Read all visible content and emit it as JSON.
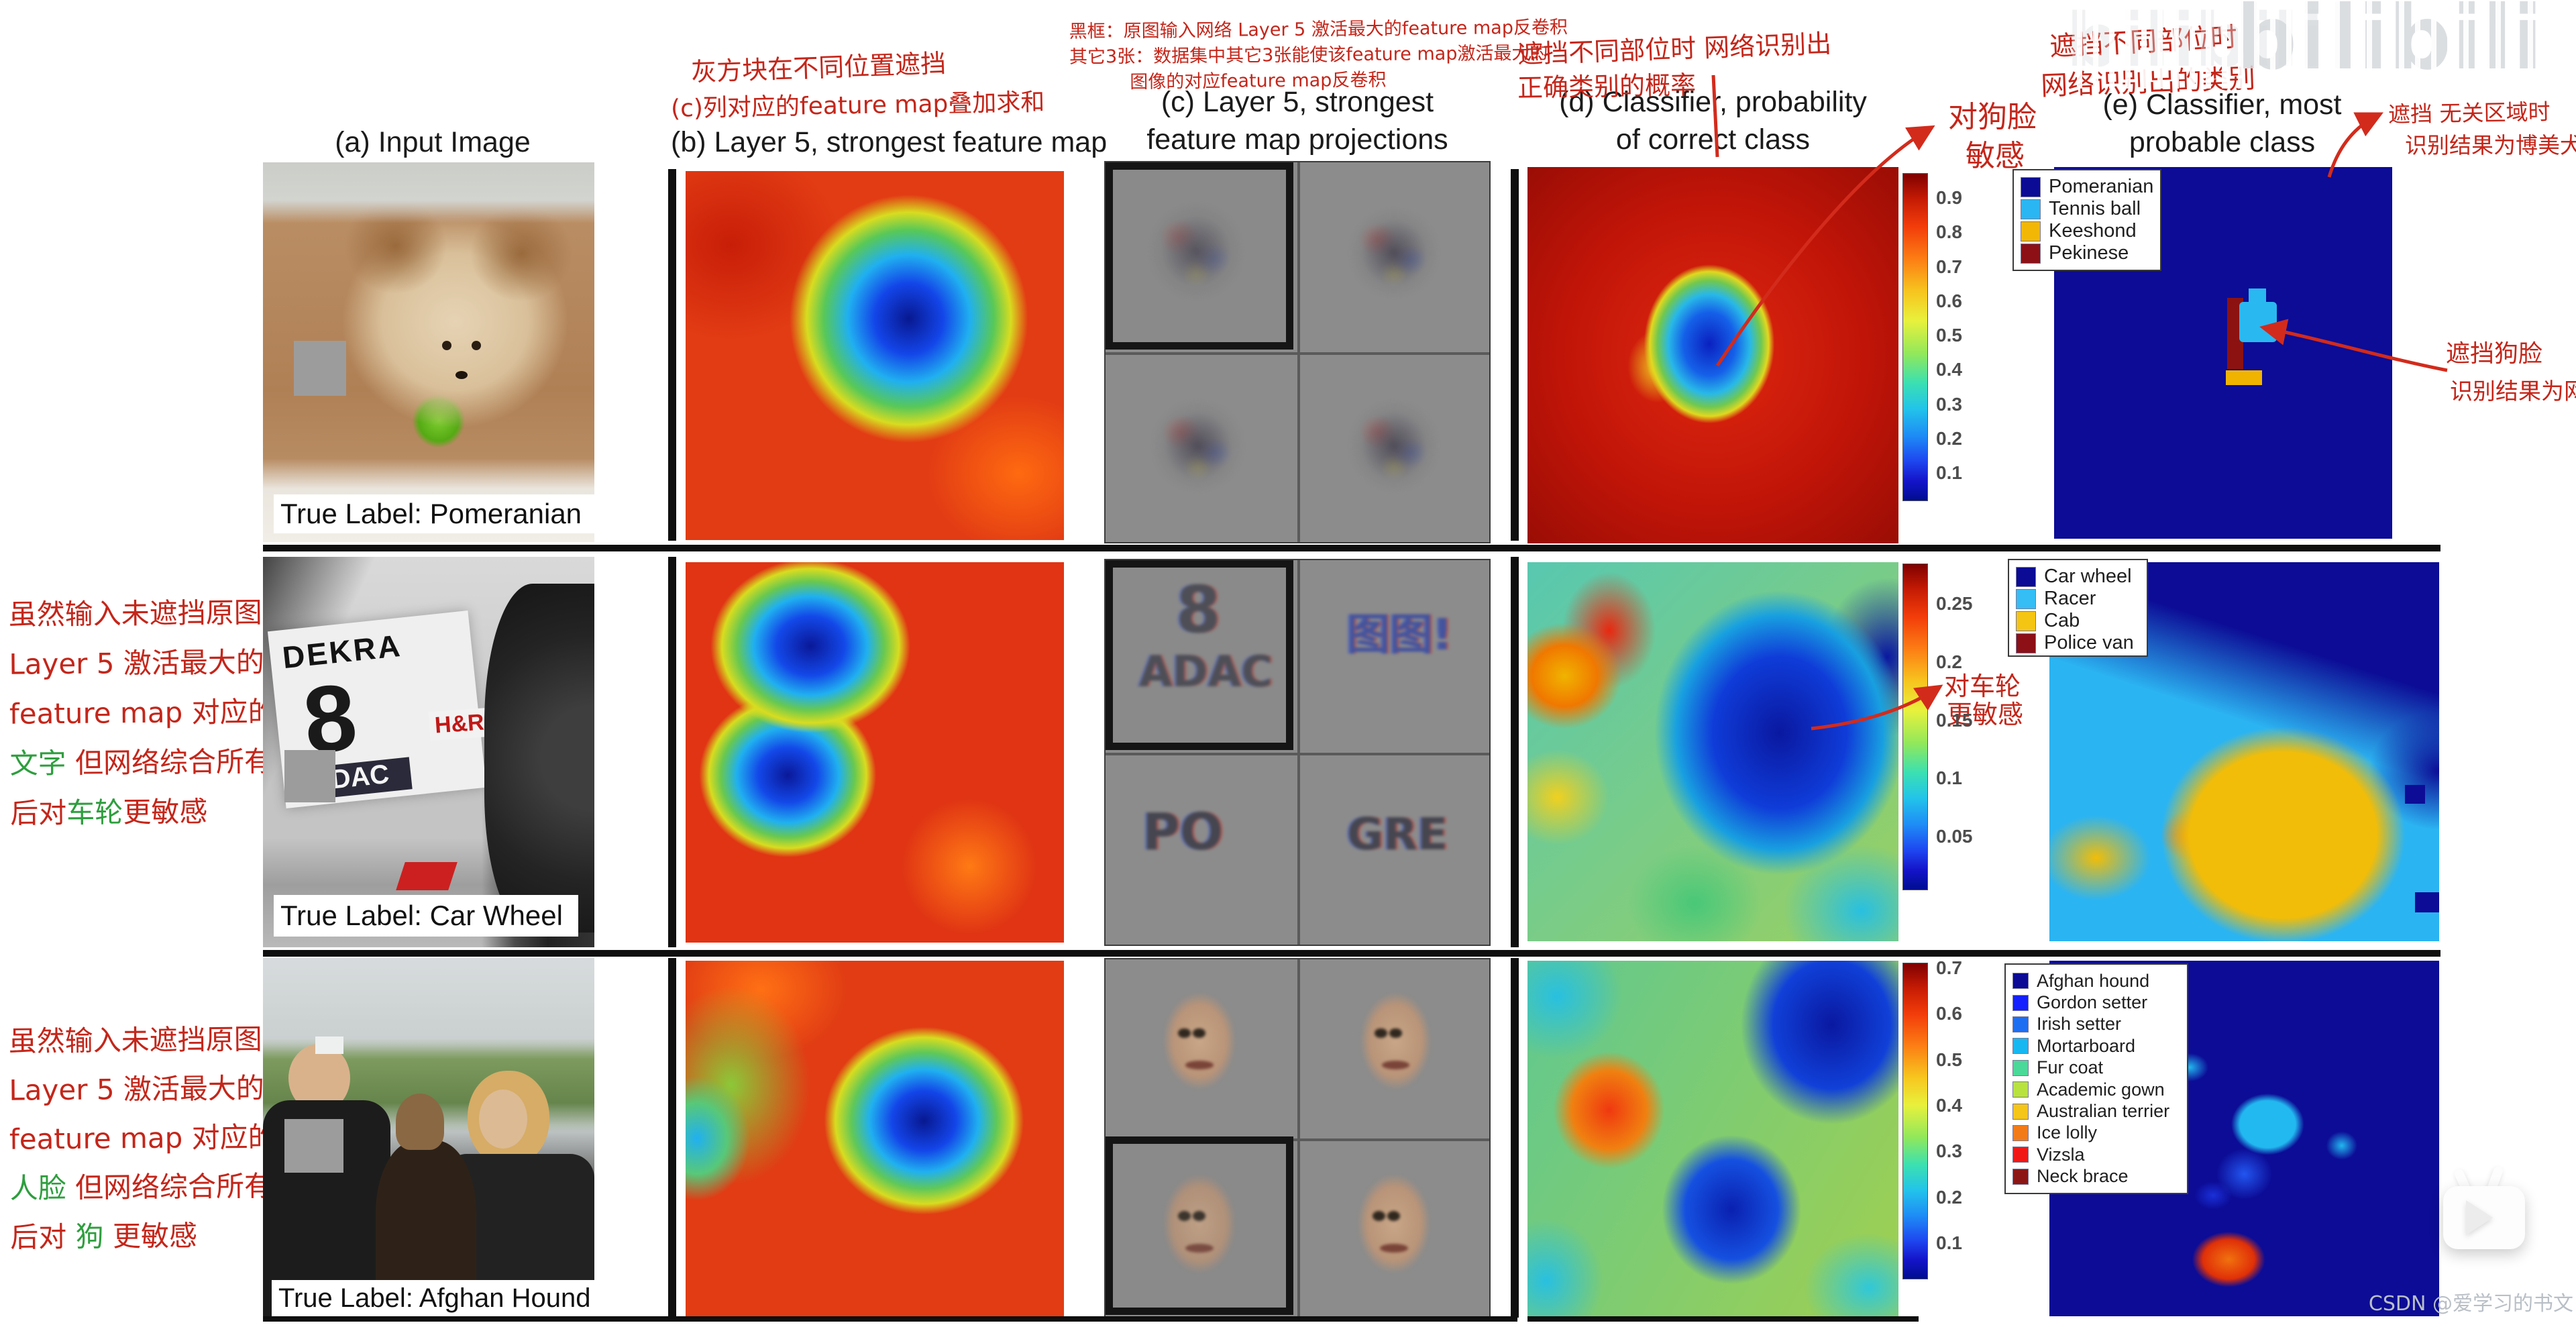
{
  "columns": {
    "a": {
      "header": "(a) Input Image"
    },
    "b": {
      "header": "(b) Layer 5, strongest feature map"
    },
    "c": {
      "header_line1": "(c) Layer 5, strongest",
      "header_line2": "feature map projections"
    },
    "d": {
      "header_line1": "(d) Classifier, probability",
      "header_line2": "of correct class"
    },
    "e": {
      "header_line1": "(e) Classifier, most",
      "header_line2": "probable class"
    }
  },
  "annotations": {
    "above_b_line1": "灰方块在不同位置遮挡",
    "above_b_line2": "(c)列对应的feature map叠加求和",
    "above_c_line1": "黑框：原图输入网络 Layer 5 激活最大的feature map反卷积",
    "above_c_line2": "其它3张：数据集中其它3张能使该feature map激活最大的",
    "above_c_line3": "图像的对应feature map反卷积",
    "above_d_line1": "遮挡不同部位时 网络识别出",
    "above_d_line2": "正确类别的概率",
    "above_e_line1": "遮挡不同部位时",
    "above_e_line2": "网络识别出的类别",
    "dog_face_line1": "对狗脸",
    "dog_face_line2": "敏感",
    "irrelevant_line1": "遮挡 无关区域时",
    "irrelevant_line2": "识别结果为博美犬",
    "occlude_face_line1": "遮挡狗脸",
    "occlude_face_line2": "识别结果为网球",
    "wheel_line1": "对车轮",
    "wheel_line2": "更敏感",
    "row2_left": [
      [
        {
          "t": "虽然输入未遮挡原图",
          "c": "r"
        }
      ],
      [
        {
          "t": "Layer 5 激活最大的",
          "c": "r"
        }
      ],
      [
        {
          "t": "feature map 对应的特征是",
          "c": "r"
        }
      ],
      [
        {
          "t": "文字",
          "c": "g"
        },
        {
          "t": "  但网络综合所有特征",
          "c": "r"
        }
      ],
      [
        {
          "t": "后对",
          "c": "r"
        },
        {
          "t": "车轮",
          "c": "g"
        },
        {
          "t": "更敏感",
          "c": "r"
        }
      ]
    ],
    "row3_left": [
      [
        {
          "t": "虽然输入未遮挡原图",
          "c": "r"
        }
      ],
      [
        {
          "t": "Layer 5 激活最大的",
          "c": "r"
        }
      ],
      [
        {
          "t": "feature map 对应的特征是",
          "c": "r"
        }
      ],
      [
        {
          "t": "人脸",
          "c": "g"
        },
        {
          "t": "  但网络综合所有特征",
          "c": "r"
        }
      ],
      [
        {
          "t": "后对 ",
          "c": "r"
        },
        {
          "t": "狗",
          "c": "g"
        },
        {
          "t": "  更敏感",
          "c": "r"
        }
      ]
    ]
  },
  "rows": [
    {
      "name": "pomeranian",
      "true_label": "True Label: Pomeranian",
      "colorbar_ticks": [
        "0.9",
        "0.8",
        "0.7",
        "0.6",
        "0.5",
        "0.4",
        "0.3",
        "0.2",
        "0.1"
      ],
      "legend": [
        {
          "label": "Pomeranian",
          "color": "#0b0b96"
        },
        {
          "label": "Tennis ball",
          "color": "#29b6f2"
        },
        {
          "label": "Keeshond",
          "color": "#f2b705"
        },
        {
          "label": "Pekinese",
          "color": "#8c1016"
        }
      ]
    },
    {
      "name": "car-wheel",
      "true_label": "True Label: Car Wheel",
      "colorbar_ticks": [
        "0.25",
        "0.2",
        "0.15",
        "0.1",
        "0.05"
      ],
      "legend": [
        {
          "label": "Car wheel",
          "color": "#0b0b96"
        },
        {
          "label": "Racer",
          "color": "#35bdf5"
        },
        {
          "label": "Cab",
          "color": "#f5c513"
        },
        {
          "label": "Police van",
          "color": "#8c1016"
        }
      ],
      "photo_text": {
        "dekra": "DEKRA",
        "number": "8",
        "adac": "ADAC",
        "hr": "H&R"
      },
      "c_texts": {
        "tl_num": "8",
        "tl_word": "ADAC",
        "tr": "图图!",
        "bl": "PO",
        "br": "GRE"
      }
    },
    {
      "name": "afghan-hound",
      "true_label": "True Label: Afghan Hound",
      "colorbar_ticks": [
        "0.7",
        "0.6",
        "0.5",
        "0.4",
        "0.3",
        "0.2",
        "0.1"
      ],
      "legend": [
        {
          "label": "Afghan hound",
          "color": "#0b0b96"
        },
        {
          "label": "Gordon setter",
          "color": "#1420ff"
        },
        {
          "label": "Irish setter",
          "color": "#1e6ef2"
        },
        {
          "label": "Mortarboard",
          "color": "#17b8f2"
        },
        {
          "label": "Fur coat",
          "color": "#4ad998"
        },
        {
          "label": "Academic gown",
          "color": "#b8e23e"
        },
        {
          "label": "Australian terrier",
          "color": "#f5c517"
        },
        {
          "label": "Ice lolly",
          "color": "#f27b17"
        },
        {
          "label": "Vizsla",
          "color": "#f21717"
        },
        {
          "label": "Neck brace",
          "color": "#8c1616"
        }
      ]
    }
  ],
  "watermarks": {
    "bilibili": "bilibili",
    "csdn": "CSDN @爱学习的书文"
  }
}
